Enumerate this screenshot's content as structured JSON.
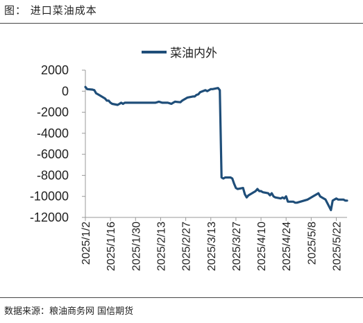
{
  "header": {
    "title": "图：  进口菜油成本"
  },
  "source": {
    "text": "数据来源：粮油商务网  国信期货"
  },
  "colors": {
    "series": "#1f4e79",
    "axis": "#999999",
    "text": "#222222"
  },
  "chart_data": {
    "type": "line",
    "title": "",
    "xlabel": "",
    "ylabel": "",
    "ylim": [
      -12000,
      2000
    ],
    "yticks": [
      2000,
      0,
      -2000,
      -4000,
      -6000,
      -8000,
      -10000,
      -12000
    ],
    "ytick_labels": [
      "2000",
      "0",
      "-2000",
      "-4000",
      "-6000",
      "-8000",
      "-10000",
      "-12000"
    ],
    "xtick_labels": [
      "2025/1/2",
      "2025/1/16",
      "2025/1/30",
      "2025/2/13",
      "2025/2/27",
      "2025/3/13",
      "2025/3/27",
      "2025/4/10",
      "2025/4/24",
      "2025/5/8",
      "2025/5/22"
    ],
    "xtick_dates": [
      "2025-01-02",
      "2025-01-16",
      "2025-01-30",
      "2025-02-13",
      "2025-02-27",
      "2025-03-13",
      "2025-03-27",
      "2025-04-10",
      "2025-04-24",
      "2025-05-08",
      "2025-05-22"
    ],
    "xlim": [
      "2025-01-02",
      "2025-05-28"
    ],
    "legend": "top-center",
    "grid": false,
    "series": [
      {
        "name": "菜油内外",
        "color": "#1f4e79",
        "points": [
          [
            "2025-01-02",
            400
          ],
          [
            "2025-01-03",
            200
          ],
          [
            "2025-01-06",
            150
          ],
          [
            "2025-01-07",
            100
          ],
          [
            "2025-01-08",
            -200
          ],
          [
            "2025-01-09",
            -300
          ],
          [
            "2025-01-10",
            -400
          ],
          [
            "2025-01-13",
            -700
          ],
          [
            "2025-01-14",
            -900
          ],
          [
            "2025-01-15",
            -900
          ],
          [
            "2025-01-16",
            -1100
          ],
          [
            "2025-01-17",
            -1200
          ],
          [
            "2025-01-20",
            -1300
          ],
          [
            "2025-01-21",
            -1200
          ],
          [
            "2025-01-22",
            -1100
          ],
          [
            "2025-01-23",
            -1200
          ],
          [
            "2025-01-24",
            -1100
          ],
          [
            "2025-02-05",
            -1100
          ],
          [
            "2025-02-06",
            -1100
          ],
          [
            "2025-02-07",
            -1100
          ],
          [
            "2025-02-10",
            -1100
          ],
          [
            "2025-02-11",
            -1050
          ],
          [
            "2025-02-12",
            -1000
          ],
          [
            "2025-02-13",
            -1050
          ],
          [
            "2025-02-14",
            -1100
          ],
          [
            "2025-02-17",
            -1100
          ],
          [
            "2025-02-18",
            -1150
          ],
          [
            "2025-02-19",
            -1200
          ],
          [
            "2025-02-20",
            -1100
          ],
          [
            "2025-02-21",
            -1000
          ],
          [
            "2025-02-24",
            -1050
          ],
          [
            "2025-02-25",
            -900
          ],
          [
            "2025-02-26",
            -800
          ],
          [
            "2025-02-27",
            -700
          ],
          [
            "2025-02-28",
            -600
          ],
          [
            "2025-03-03",
            -500
          ],
          [
            "2025-03-04",
            -500
          ],
          [
            "2025-03-05",
            -350
          ],
          [
            "2025-03-06",
            -300
          ],
          [
            "2025-03-07",
            -100
          ],
          [
            "2025-03-10",
            100
          ],
          [
            "2025-03-11",
            0
          ],
          [
            "2025-03-12",
            100
          ],
          [
            "2025-03-13",
            200
          ],
          [
            "2025-03-14",
            200
          ],
          [
            "2025-03-17",
            300
          ],
          [
            "2025-03-18",
            100
          ],
          [
            "2025-03-19",
            -8200
          ],
          [
            "2025-03-20",
            -8300
          ],
          [
            "2025-03-21",
            -8200
          ],
          [
            "2025-03-24",
            -8200
          ],
          [
            "2025-03-25",
            -8300
          ],
          [
            "2025-03-26",
            -8800
          ],
          [
            "2025-03-27",
            -9200
          ],
          [
            "2025-03-28",
            -9300
          ],
          [
            "2025-03-31",
            -9200
          ],
          [
            "2025-04-01",
            -9800
          ],
          [
            "2025-04-02",
            -10100
          ],
          [
            "2025-04-03",
            -9900
          ],
          [
            "2025-04-07",
            -9500
          ],
          [
            "2025-04-08",
            -9300
          ],
          [
            "2025-04-09",
            -9500
          ],
          [
            "2025-04-10",
            -9500
          ],
          [
            "2025-04-11",
            -9600
          ],
          [
            "2025-04-14",
            -9700
          ],
          [
            "2025-04-15",
            -9900
          ],
          [
            "2025-04-16",
            -9700
          ],
          [
            "2025-04-17",
            -10000
          ],
          [
            "2025-04-18",
            -10100
          ],
          [
            "2025-04-21",
            -10200
          ],
          [
            "2025-04-22",
            -10100
          ],
          [
            "2025-04-23",
            -10200
          ],
          [
            "2025-04-24",
            -10000
          ],
          [
            "2025-04-25",
            -10500
          ],
          [
            "2025-04-28",
            -10500
          ],
          [
            "2025-04-29",
            -10600
          ],
          [
            "2025-04-30",
            -10600
          ],
          [
            "2025-05-06",
            -10300
          ],
          [
            "2025-05-07",
            -10200
          ],
          [
            "2025-05-08",
            -10100
          ],
          [
            "2025-05-09",
            -10000
          ],
          [
            "2025-05-12",
            -9700
          ],
          [
            "2025-05-13",
            -10000
          ],
          [
            "2025-05-14",
            -10100
          ],
          [
            "2025-05-15",
            -10200
          ],
          [
            "2025-05-16",
            -10300
          ],
          [
            "2025-05-19",
            -11300
          ],
          [
            "2025-05-20",
            -10400
          ],
          [
            "2025-05-21",
            -10300
          ],
          [
            "2025-05-22",
            -10200
          ],
          [
            "2025-05-23",
            -10300
          ],
          [
            "2025-05-26",
            -10300
          ],
          [
            "2025-05-27",
            -10400
          ],
          [
            "2025-05-28",
            -10400
          ]
        ]
      }
    ]
  }
}
